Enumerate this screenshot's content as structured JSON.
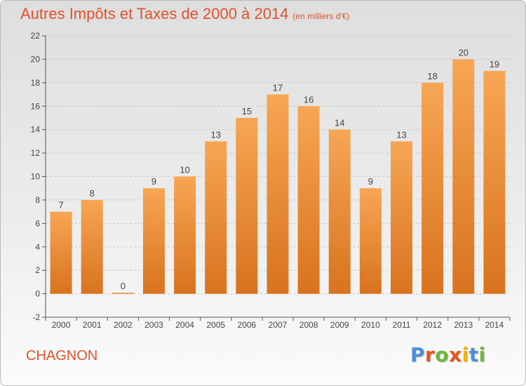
{
  "title": "Autres Impôts et Taxes de 2000 à 2014",
  "title_unit": "(en milliers d'€)",
  "place": "CHAGNON",
  "brand": {
    "letters": [
      "P",
      "r",
      "o",
      "x",
      "i",
      "t",
      "i"
    ],
    "colors": [
      "#4a90d9",
      "#e8541f",
      "#6bb83a",
      "#e8541f",
      "#f0b400",
      "#4a90d9",
      "#6bb83a"
    ]
  },
  "colors": {
    "accent": "#e0522b",
    "bar_top": "#f7a654",
    "bar_bottom": "#d8731e",
    "axis": "#555555",
    "grid": "#c8c8c8"
  },
  "chart_data": {
    "type": "bar",
    "title": "Autres Impôts et Taxes de 2000 à 2014",
    "xlabel": "",
    "ylabel": "",
    "categories": [
      "2000",
      "2001",
      "2002",
      "2003",
      "2004",
      "2005",
      "2006",
      "2007",
      "2008",
      "2009",
      "2010",
      "2011",
      "2012",
      "2013",
      "2014"
    ],
    "values": [
      7,
      8,
      0,
      9,
      10,
      13,
      15,
      17,
      16,
      14,
      9,
      13,
      18,
      20,
      19
    ],
    "data_labels": [
      "7",
      "8",
      "0",
      "9",
      "10",
      "13",
      "15",
      "17",
      "16",
      "14",
      "9",
      "13",
      "18",
      "20",
      "19"
    ],
    "ylim": [
      -2,
      22
    ],
    "yticks": [
      -2,
      0,
      2,
      4,
      6,
      8,
      10,
      12,
      14,
      16,
      18,
      20,
      22
    ],
    "grid": "horizontal dashed",
    "legend": "none"
  }
}
